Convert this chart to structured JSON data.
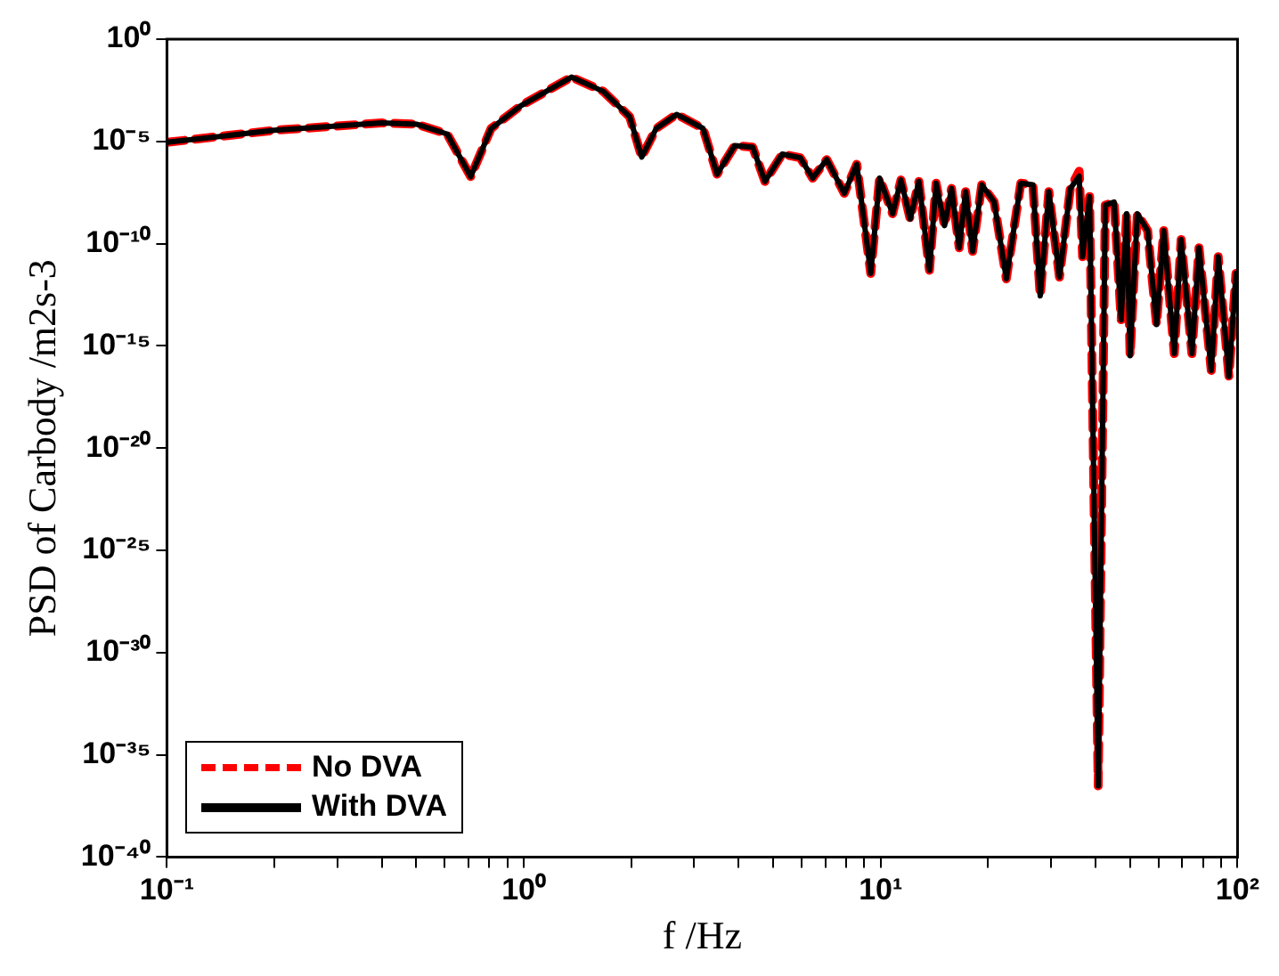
{
  "chart_data": {
    "type": "line",
    "xlabel": "f /Hz",
    "ylabel": "PSD of Carbody /m2s-3",
    "log": "xy",
    "grid": false,
    "legend": "bottom left",
    "marker": "none",
    "x": [
      0.1,
      0.2,
      0.4,
      0.5,
      0.61,
      0.71,
      0.81,
      0.98,
      1.36,
      1.67,
      1.98,
      2.14,
      2.35,
      2.68,
      3.18,
      3.48,
      3.9,
      4.38,
      4.74,
      5.3,
      5.95,
      6.45,
      7.06,
      7.91,
      8.57,
      9.38,
      9.93,
      10.8,
      11.4,
      12.1,
      12.8,
      13.7,
      14.3,
      15.1,
      15.8,
      16.6,
      17.3,
      18.1,
      19.2,
      20.8,
      22.5,
      24.7,
      26.7,
      28,
      29.6,
      31.7,
      34,
      36,
      36.8,
      38.5,
      40.7,
      42.6,
      45.1,
      47.2,
      48.9,
      50,
      52.4,
      56,
      59.3,
      62.1,
      66.5,
      69.5,
      74.5,
      78,
      84.4,
      88.3,
      94.6,
      99
    ],
    "series": [
      {
        "name": "No DVA",
        "color": "#ff0000",
        "line_style": "dashed",
        "values": [
          9e-06,
          3.5e-05,
          8e-05,
          7e-05,
          2.3e-05,
          1.9e-07,
          4.3e-05,
          0.00055,
          0.014,
          0.0028,
          0.00016,
          1.7e-06,
          4.3e-05,
          0.00021,
          4.3e-05,
          2.5e-07,
          6.3e-06,
          5.2e-06,
          1.1e-07,
          2.4e-06,
          1.6e-06,
          1.6e-07,
          1.3e-06,
          2.9e-08,
          7.6e-07,
          3.5e-12,
          1.6e-07,
          2.9e-09,
          1.3e-07,
          1.6e-09,
          1.1e-07,
          5e-12,
          9e-08,
          7.6e-10,
          5e-08,
          6.3e-11,
          3.5e-08,
          4.2e-11,
          7.6e-08,
          1.1e-08,
          1.9e-12,
          9e-08,
          7.6e-08,
          2.8e-13,
          3.5e-08,
          2.3e-12,
          5e-08,
          3.5e-07,
          2.3e-11,
          2e-08,
          3e-37,
          7.6e-09,
          1.1e-08,
          1.9e-14,
          2.9e-09,
          3.3e-16,
          2.9e-09,
          4.3e-10,
          1.1e-14,
          4.3e-10,
          4.2e-16,
          1.6e-10,
          4.2e-16,
          6.3e-11,
          6.3e-17,
          2.3e-11,
          3.2e-17,
          3.5e-12
        ]
      },
      {
        "name": "With DVA",
        "color": "#000000",
        "line_style": "solid",
        "values": [
          9e-06,
          3.5e-05,
          8e-05,
          7e-05,
          2.3e-05,
          1.9e-07,
          4.3e-05,
          0.00055,
          0.014,
          0.0028,
          0.00016,
          1.7e-06,
          4.3e-05,
          0.00021,
          4.3e-05,
          2.5e-07,
          6.3e-06,
          5.2e-06,
          1.1e-07,
          2.4e-06,
          1.6e-06,
          1.6e-07,
          1.3e-06,
          2.9e-08,
          7.6e-07,
          3.5e-12,
          1.6e-07,
          2.9e-09,
          1.3e-07,
          1.6e-09,
          1.1e-07,
          5e-12,
          9e-08,
          7.6e-10,
          5e-08,
          6.3e-11,
          3.5e-08,
          4.2e-11,
          7.6e-08,
          1.1e-08,
          1.9e-12,
          9e-08,
          7.6e-08,
          2.8e-13,
          3.5e-08,
          2.3e-12,
          5e-08,
          2e-07,
          2.3e-11,
          2e-08,
          3e-37,
          7.6e-09,
          1.1e-08,
          1.9e-14,
          2.9e-09,
          3.3e-16,
          2.9e-09,
          4.3e-10,
          1.1e-14,
          4.3e-10,
          4.2e-16,
          1.6e-10,
          4.2e-16,
          6.3e-11,
          6.3e-17,
          2.3e-11,
          3.2e-17,
          3.5e-12
        ]
      }
    ],
    "xlim": [
      0.1,
      100
    ],
    "xticks": [
      {
        "value": 0.1,
        "label": "10⁻¹"
      },
      {
        "value": 0.2,
        "label": null
      },
      {
        "value": 0.3,
        "label": null
      },
      {
        "value": 0.4,
        "label": null
      },
      {
        "value": 0.5,
        "label": null
      },
      {
        "value": 0.6,
        "label": null
      },
      {
        "value": 0.7,
        "label": null
      },
      {
        "value": 0.8,
        "label": null
      },
      {
        "value": 0.9,
        "label": null
      },
      {
        "value": 1,
        "label": "10⁰"
      },
      {
        "value": 2,
        "label": null
      },
      {
        "value": 3,
        "label": null
      },
      {
        "value": 4,
        "label": null
      },
      {
        "value": 5,
        "label": null
      },
      {
        "value": 6,
        "label": null
      },
      {
        "value": 7,
        "label": null
      },
      {
        "value": 8,
        "label": null
      },
      {
        "value": 9,
        "label": null
      },
      {
        "value": 10,
        "label": "10¹"
      },
      {
        "value": 20,
        "label": null
      },
      {
        "value": 30,
        "label": null
      },
      {
        "value": 40,
        "label": null
      },
      {
        "value": 50,
        "label": null
      },
      {
        "value": 60,
        "label": null
      },
      {
        "value": 70,
        "label": null
      },
      {
        "value": 80,
        "label": null
      },
      {
        "value": 90,
        "label": null
      },
      {
        "value": 100,
        "label": "10²"
      }
    ],
    "ylim": [
      1e-40,
      1
    ],
    "yticks": [
      {
        "value": 1e-40,
        "label": "10⁻⁴⁰"
      },
      {
        "value": 1e-35,
        "label": "10⁻³⁵"
      },
      {
        "value": 1e-30,
        "label": "10⁻³⁰"
      },
      {
        "value": 1e-25,
        "label": "10⁻²⁵"
      },
      {
        "value": 1e-20,
        "label": "10⁻²⁰"
      },
      {
        "value": 1e-15,
        "label": "10⁻¹⁵"
      },
      {
        "value": 1e-10,
        "label": "10⁻¹⁰"
      },
      {
        "value": 1e-05,
        "label": "10⁻⁵"
      },
      {
        "value": 1,
        "label": "10⁰"
      }
    ]
  }
}
